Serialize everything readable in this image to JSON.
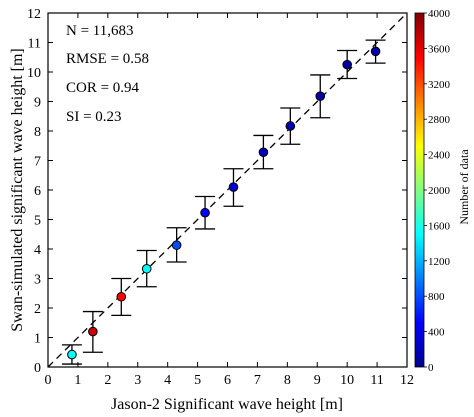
{
  "chart_data": {
    "type": "scatter",
    "title": "",
    "xlabel": "Jason-2 Significant wave height [m]",
    "ylabel": "Swan-simulated significant wave height [m]",
    "xlim": [
      0,
      12
    ],
    "ylim": [
      0,
      12
    ],
    "xticks": [
      "0",
      "1",
      "2",
      "3",
      "4",
      "5",
      "6",
      "7",
      "8",
      "9",
      "10",
      "11",
      "12"
    ],
    "yticks": [
      "0",
      "1",
      "2",
      "3",
      "4",
      "5",
      "6",
      "7",
      "8",
      "9",
      "10",
      "11",
      "12"
    ],
    "grid": false,
    "reference_line": {
      "style": "dashed",
      "from": [
        0,
        0
      ],
      "to": [
        12,
        12
      ]
    },
    "points": [
      {
        "x": 0.8,
        "y": 0.42,
        "lo": 0.1,
        "hi": 0.75,
        "n": 1500
      },
      {
        "x": 1.5,
        "y": 1.2,
        "lo": 0.5,
        "hi": 1.88,
        "n": 3700
      },
      {
        "x": 2.45,
        "y": 2.38,
        "lo": 1.75,
        "hi": 3.0,
        "n": 3500
      },
      {
        "x": 3.3,
        "y": 3.33,
        "lo": 2.72,
        "hi": 3.95,
        "n": 1500
      },
      {
        "x": 4.3,
        "y": 4.13,
        "lo": 3.56,
        "hi": 4.72,
        "n": 800
      },
      {
        "x": 5.25,
        "y": 5.23,
        "lo": 4.68,
        "hi": 5.78,
        "n": 500
      },
      {
        "x": 6.2,
        "y": 6.1,
        "lo": 5.45,
        "hi": 6.72,
        "n": 300
      },
      {
        "x": 7.2,
        "y": 7.28,
        "lo": 6.72,
        "hi": 7.85,
        "n": 200
      },
      {
        "x": 8.1,
        "y": 8.17,
        "lo": 7.55,
        "hi": 8.78,
        "n": 150
      },
      {
        "x": 9.1,
        "y": 9.18,
        "lo": 8.45,
        "hi": 9.9,
        "n": 100
      },
      {
        "x": 10.0,
        "y": 10.25,
        "lo": 9.78,
        "hi": 10.73,
        "n": 100
      },
      {
        "x": 10.95,
        "y": 10.7,
        "lo": 10.3,
        "hi": 11.08,
        "n": 80
      }
    ],
    "annotations": [
      "N = 11,683",
      "RMSE = 0.58",
      "COR = 0.94",
      "SI = 0.23"
    ],
    "colorbar": {
      "label": "Number of data",
      "range": [
        0,
        4000
      ],
      "ticks": [
        "0",
        "400",
        "800",
        "1200",
        "1600",
        "2000",
        "2400",
        "2800",
        "3200",
        "3600",
        "4000"
      ],
      "colors": [
        "#00008f",
        "#0000ff",
        "#0080ff",
        "#00ffff",
        "#80ff80",
        "#ffff00",
        "#ff8000",
        "#ff0000",
        "#800000"
      ]
    }
  }
}
